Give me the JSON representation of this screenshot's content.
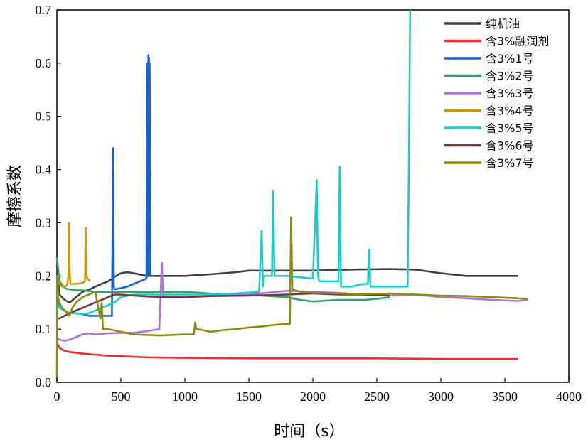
{
  "chart_data": {
    "type": "line",
    "title": "",
    "xlabel": "时间（s）",
    "ylabel": "摩擦系数",
    "xlim": [
      0,
      4000
    ],
    "ylim": [
      0,
      0.7
    ],
    "x_ticks": [
      0,
      500,
      1000,
      1500,
      2000,
      2500,
      3000,
      3500,
      4000
    ],
    "y_ticks": [
      0.0,
      0.1,
      0.2,
      0.3,
      0.4,
      0.5,
      0.6,
      0.7
    ],
    "x_tick_labels": [
      "0",
      "500",
      "1000",
      "1500",
      "2000",
      "2500",
      "3000",
      "3500",
      "4000"
    ],
    "y_tick_labels": [
      "0.0",
      "0.1",
      "0.2",
      "0.3",
      "0.4",
      "0.5",
      "0.6",
      "0.7"
    ],
    "grid": false,
    "legend_position": "top-right",
    "series": [
      {
        "name": "纯机油",
        "color": "#404040",
        "x": [
          0,
          20,
          60,
          100,
          150,
          200,
          260,
          300,
          350,
          400,
          450,
          500,
          550,
          600,
          700,
          800,
          1000,
          1200,
          1400,
          1500,
          1600,
          2000,
          2300,
          2600,
          2800,
          3000,
          3200,
          3400,
          3600
        ],
        "y": [
          0.22,
          0.165,
          0.155,
          0.15,
          0.16,
          0.17,
          0.175,
          0.18,
          0.185,
          0.19,
          0.198,
          0.205,
          0.207,
          0.205,
          0.2,
          0.2,
          0.2,
          0.203,
          0.207,
          0.21,
          0.21,
          0.21,
          0.212,
          0.213,
          0.212,
          0.205,
          0.2,
          0.2,
          0.2
        ]
      },
      {
        "name": "含3%融润剂",
        "color": "#e83030",
        "x": [
          0,
          10,
          20,
          50,
          100,
          200,
          300,
          400,
          500,
          700,
          1000,
          1500,
          2000,
          2500,
          3000,
          3500,
          3600
        ],
        "y": [
          0.075,
          0.07,
          0.065,
          0.06,
          0.057,
          0.054,
          0.052,
          0.05,
          0.049,
          0.047,
          0.046,
          0.045,
          0.045,
          0.045,
          0.044,
          0.044,
          0.044
        ]
      },
      {
        "name": "含3%1号",
        "color": "#1f5fc8",
        "x": [
          0,
          20,
          60,
          100,
          150,
          200,
          250,
          300,
          350,
          400,
          430,
          440,
          445,
          450,
          460,
          500,
          550,
          600,
          650,
          700,
          705,
          710,
          715,
          718,
          720,
          722,
          725,
          730
        ],
        "y": [
          0.16,
          0.14,
          0.135,
          0.13,
          0.13,
          0.128,
          0.125,
          0.125,
          0.125,
          0.125,
          0.125,
          0.44,
          0.18,
          0.175,
          0.175,
          0.177,
          0.18,
          0.185,
          0.19,
          0.195,
          0.6,
          0.2,
          0.615,
          0.2,
          0.61,
          0.2,
          0.6,
          0.2
        ]
      },
      {
        "name": "含3%2号",
        "color": "#2ea36a",
        "x": [
          0,
          20,
          50,
          80,
          100,
          150,
          200,
          300,
          400,
          500,
          600,
          800,
          1000,
          1200,
          1400,
          1600,
          1800,
          1900,
          2000,
          2200,
          2400,
          2500,
          2600
        ],
        "y": [
          0.235,
          0.19,
          0.18,
          0.175,
          0.175,
          0.173,
          0.173,
          0.17,
          0.17,
          0.17,
          0.17,
          0.17,
          0.17,
          0.167,
          0.165,
          0.163,
          0.16,
          0.155,
          0.152,
          0.155,
          0.155,
          0.157,
          0.16
        ]
      },
      {
        "name": "含3%3号",
        "color": "#b070e0",
        "x": [
          0,
          20,
          60,
          100,
          150,
          200,
          250,
          300,
          400,
          500,
          600,
          700,
          800,
          820,
          830,
          850,
          900,
          1000,
          1200,
          1500,
          1800,
          2000,
          2200,
          2400,
          2600,
          2800,
          3000,
          3200,
          3400,
          3600,
          3680
        ],
        "y": [
          0.085,
          0.08,
          0.078,
          0.08,
          0.085,
          0.09,
          0.092,
          0.09,
          0.092,
          0.093,
          0.093,
          0.096,
          0.1,
          0.225,
          0.16,
          0.16,
          0.16,
          0.16,
          0.163,
          0.165,
          0.172,
          0.17,
          0.168,
          0.165,
          0.163,
          0.165,
          0.16,
          0.158,
          0.155,
          0.153,
          0.155
        ]
      },
      {
        "name": "含3%4号",
        "color": "#c89a10",
        "x": [
          0,
          20,
          40,
          60,
          80,
          90,
          95,
          100,
          105,
          110,
          150,
          200,
          220,
          225,
          230,
          240,
          260
        ],
        "y": [
          0.2,
          0.185,
          0.18,
          0.18,
          0.183,
          0.2,
          0.3,
          0.21,
          0.185,
          0.185,
          0.185,
          0.187,
          0.19,
          0.29,
          0.2,
          0.195,
          0.19
        ]
      },
      {
        "name": "含3%5号",
        "color": "#20c8c8",
        "x": [
          0,
          20,
          60,
          100,
          150,
          200,
          250,
          300,
          350,
          400,
          450,
          500,
          600,
          800,
          1000,
          1200,
          1400,
          1580,
          1600,
          1610,
          1620,
          1680,
          1690,
          1700,
          1710,
          1800,
          2000,
          2030,
          2040,
          2050,
          2100,
          2200,
          2210,
          2220,
          2300,
          2400,
          2430,
          2440,
          2450,
          2600,
          2740,
          2750,
          2760
        ],
        "y": [
          0.15,
          0.14,
          0.135,
          0.13,
          0.13,
          0.128,
          0.13,
          0.135,
          0.14,
          0.145,
          0.15,
          0.16,
          0.165,
          0.165,
          0.165,
          0.165,
          0.167,
          0.17,
          0.285,
          0.18,
          0.2,
          0.2,
          0.36,
          0.2,
          0.2,
          0.2,
          0.195,
          0.38,
          0.2,
          0.19,
          0.19,
          0.19,
          0.405,
          0.18,
          0.18,
          0.185,
          0.185,
          0.25,
          0.18,
          0.18,
          0.18,
          0.4,
          0.7
        ]
      },
      {
        "name": "含3%6号",
        "color": "#6e3c3c",
        "x": [
          0,
          20,
          60,
          100,
          150,
          200,
          250,
          300,
          350,
          400,
          450,
          500,
          600,
          800,
          1000,
          1200,
          1500,
          1800,
          2000,
          2200,
          2400,
          2600
        ],
        "y": [
          0.12,
          0.12,
          0.125,
          0.13,
          0.135,
          0.14,
          0.145,
          0.15,
          0.155,
          0.16,
          0.165,
          0.165,
          0.163,
          0.16,
          0.16,
          0.162,
          0.163,
          0.165,
          0.167,
          0.165,
          0.165,
          0.163
        ]
      },
      {
        "name": "含3%7号",
        "color": "#8c8c14",
        "x": [
          0,
          5,
          10,
          20,
          40,
          60,
          80,
          100,
          120,
          150,
          200,
          250,
          300,
          340,
          350,
          360,
          400,
          500,
          600,
          800,
          1000,
          1070,
          1080,
          1090,
          1100,
          1200,
          1300,
          1400,
          1500,
          1600,
          1700,
          1800,
          1820,
          1830,
          1840,
          1900,
          2000,
          2200,
          2400,
          2600,
          2800,
          3000,
          3200,
          3400,
          3600,
          3680
        ],
        "y": [
          0.01,
          0.2,
          0.16,
          0.15,
          0.14,
          0.135,
          0.13,
          0.125,
          0.14,
          0.15,
          0.16,
          0.165,
          0.17,
          0.12,
          0.15,
          0.1,
          0.1,
          0.095,
          0.09,
          0.088,
          0.09,
          0.09,
          0.112,
          0.1,
          0.1,
          0.095,
          0.098,
          0.1,
          0.103,
          0.105,
          0.108,
          0.11,
          0.11,
          0.31,
          0.175,
          0.17,
          0.168,
          0.167,
          0.166,
          0.167,
          0.165,
          0.163,
          0.162,
          0.16,
          0.158,
          0.157
        ]
      }
    ]
  }
}
